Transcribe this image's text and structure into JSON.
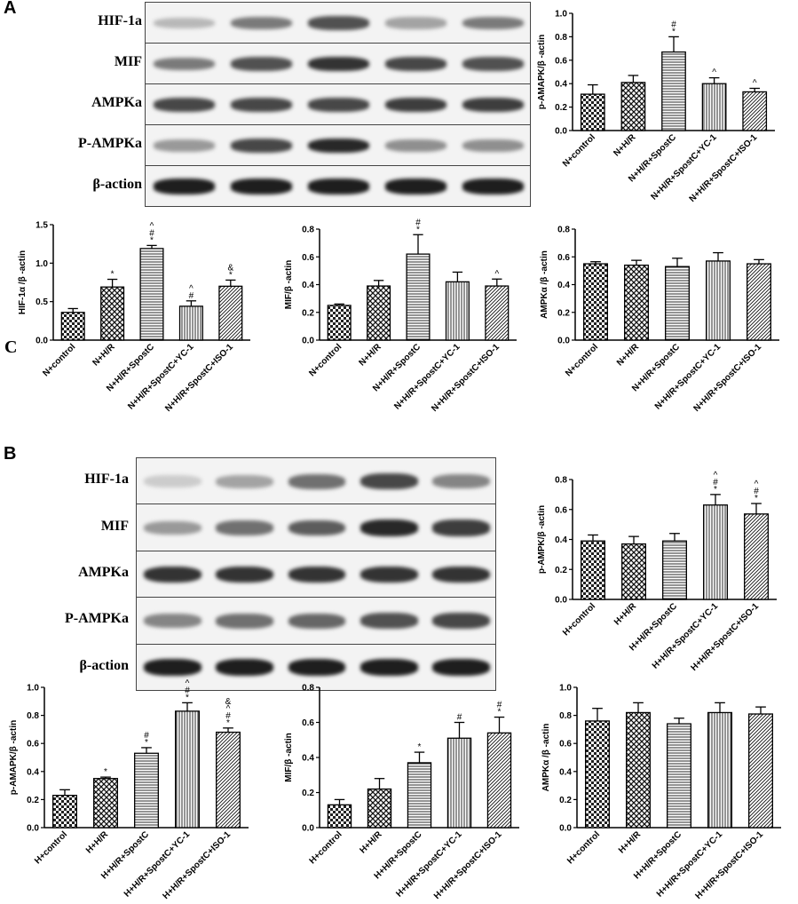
{
  "panel_labels": {
    "a": "A",
    "b": "B",
    "c": "C"
  },
  "blot_A": {
    "rows": [
      {
        "label": "HIF-1a",
        "intensity": [
          0.25,
          0.55,
          0.75,
          0.35,
          0.55
        ]
      },
      {
        "label": "MIF",
        "intensity": [
          0.55,
          0.75,
          0.9,
          0.8,
          0.75
        ]
      },
      {
        "label": "AMPKa",
        "intensity": [
          0.8,
          0.8,
          0.8,
          0.85,
          0.85
        ]
      },
      {
        "label": "P-AMPKa",
        "intensity": [
          0.4,
          0.8,
          0.95,
          0.45,
          0.45
        ]
      },
      {
        "label": "β-action",
        "intensity": [
          1,
          1,
          1,
          1,
          1
        ]
      }
    ]
  },
  "blot_B": {
    "rows": [
      {
        "label": "HIF-1a",
        "intensity": [
          0.15,
          0.35,
          0.6,
          0.8,
          0.5
        ]
      },
      {
        "label": "MIF",
        "intensity": [
          0.4,
          0.6,
          0.7,
          0.95,
          0.85
        ]
      },
      {
        "label": "AMPKa",
        "intensity": [
          0.9,
          0.9,
          0.9,
          0.9,
          0.9
        ]
      },
      {
        "label": "P-AMPKa",
        "intensity": [
          0.5,
          0.6,
          0.65,
          0.75,
          0.8
        ]
      },
      {
        "label": "β-action",
        "intensity": [
          1,
          1,
          1,
          1,
          1
        ]
      }
    ]
  },
  "chart_data": [
    {
      "id": "a-pampk",
      "type": "bar",
      "ylabel": "p-AMAPK/β -actin",
      "ylim": [
        0,
        1.0
      ],
      "yticks": [
        "0.0",
        "0.2",
        "0.4",
        "0.6",
        "0.8",
        "1.0"
      ],
      "categories": [
        "N+control",
        "N+H/R",
        "N+H/R+SpostC",
        "N+H/R+SpostC+YC-1",
        "N+H/R+SpostC+ISO-1"
      ],
      "values": [
        0.31,
        0.41,
        0.67,
        0.4,
        0.33
      ],
      "errors": [
        0.08,
        0.06,
        0.13,
        0.05,
        0.03
      ],
      "annotations": [
        [],
        [],
        [
          "#",
          "*"
        ],
        [
          "^"
        ],
        [
          "^"
        ]
      ]
    },
    {
      "id": "a-hif",
      "type": "bar",
      "ylabel": "HIF-1α /β -actin",
      "ylim": [
        0,
        1.5
      ],
      "yticks": [
        "0.0",
        "0.5",
        "1.0",
        "1.5"
      ],
      "categories": [
        "N+control",
        "N+H/R",
        "N+H/R+SpostC",
        "N+H/R+SpostC+YC-1",
        "N+H/R+SpostC+ISO-1"
      ],
      "values": [
        0.36,
        0.69,
        1.19,
        0.44,
        0.7
      ],
      "errors": [
        0.05,
        0.1,
        0.04,
        0.07,
        0.08
      ],
      "annotations": [
        [],
        [
          "*"
        ],
        [
          "^",
          "#",
          "*"
        ],
        [
          "^",
          "#"
        ],
        [
          "&",
          "*"
        ]
      ]
    },
    {
      "id": "a-mif",
      "type": "bar",
      "ylabel": "MIF/β -actin",
      "ylim": [
        0,
        0.8
      ],
      "yticks": [
        "0.0",
        "0.2",
        "0.4",
        "0.6",
        "0.8"
      ],
      "categories": [
        "N+control",
        "N+H/R",
        "N+H/R+SpostC",
        "N+H/R+SpostC+YC-1",
        "N+H/R+SpostC+ISO-1"
      ],
      "values": [
        0.25,
        0.39,
        0.62,
        0.42,
        0.39
      ],
      "errors": [
        0.01,
        0.04,
        0.14,
        0.07,
        0.05
      ],
      "annotations": [
        [],
        [],
        [
          "#",
          "*"
        ],
        [],
        [
          "^"
        ]
      ]
    },
    {
      "id": "a-ampk",
      "type": "bar",
      "ylabel": "AMPKα /β -actin",
      "ylim": [
        0,
        0.8
      ],
      "yticks": [
        "0.0",
        "0.2",
        "0.4",
        "0.6",
        "0.8"
      ],
      "categories": [
        "N+control",
        "N+H/R",
        "N+H/R+SpostC",
        "N+H/R+SpostC+YC-1",
        "N+H/R+SpostC+ISO-1"
      ],
      "values": [
        0.55,
        0.54,
        0.53,
        0.57,
        0.55
      ],
      "errors": [
        0.015,
        0.035,
        0.06,
        0.06,
        0.03
      ],
      "annotations": [
        [],
        [],
        [],
        [],
        []
      ]
    },
    {
      "id": "b-pampk-top",
      "type": "bar",
      "ylabel": "p-AMPK/β -actin",
      "ylim": [
        0,
        0.8
      ],
      "yticks": [
        "0.0",
        "0.2",
        "0.4",
        "0.6",
        "0.8"
      ],
      "categories": [
        "H+control",
        "H+H/R",
        "H+H/R+SpostC",
        "H+H/R+SpostC+YC-1",
        "H+H/R+SpostC+ISO-1"
      ],
      "values": [
        0.39,
        0.37,
        0.39,
        0.63,
        0.57
      ],
      "errors": [
        0.04,
        0.05,
        0.05,
        0.07,
        0.07
      ],
      "annotations": [
        [],
        [],
        [],
        [
          "^",
          "#",
          "*"
        ],
        [
          "^",
          "#",
          "*"
        ]
      ]
    },
    {
      "id": "b-pampk",
      "type": "bar",
      "ylabel": "p-AMAPK/β -actin",
      "ylim": [
        0,
        1.0
      ],
      "yticks": [
        "0.0",
        "0.2",
        "0.4",
        "0.6",
        "0.8",
        "1.0"
      ],
      "categories": [
        "H+control",
        "H+H/R",
        "H+H/R+SpostC",
        "H+H/R+SpostC+YC-1",
        "H+H/R+SpostC+ISO-1"
      ],
      "values": [
        0.23,
        0.35,
        0.53,
        0.83,
        0.68
      ],
      "errors": [
        0.04,
        0.01,
        0.04,
        0.06,
        0.03
      ],
      "annotations": [
        [],
        [
          "*"
        ],
        [
          "#",
          "*"
        ],
        [
          "^",
          "#",
          "*"
        ],
        [
          "&",
          "^",
          "#",
          "*"
        ]
      ]
    },
    {
      "id": "b-mif",
      "type": "bar",
      "ylabel": "MIF/β -actin",
      "ylim": [
        0,
        0.8
      ],
      "yticks": [
        "0.0",
        "0.2",
        "0.4",
        "0.6",
        "0.8"
      ],
      "categories": [
        "H+control",
        "H+H/R",
        "H+H/R+SpostC",
        "H+H/R+SpostC+YC-1",
        "H+H/R+SpostC+ISO-1"
      ],
      "values": [
        0.13,
        0.22,
        0.37,
        0.51,
        0.54
      ],
      "errors": [
        0.03,
        0.06,
        0.06,
        0.09,
        0.09
      ],
      "annotations": [
        [],
        [],
        [
          "*"
        ],
        [
          "#"
        ],
        [
          "#",
          "*"
        ]
      ]
    },
    {
      "id": "b-ampk",
      "type": "bar",
      "ylabel": "AMPKα /β -actin",
      "ylim": [
        0,
        1.0
      ],
      "yticks": [
        "0.0",
        "0.2",
        "0.4",
        "0.6",
        "0.8",
        "1.0"
      ],
      "categories": [
        "H+control",
        "H+H/R",
        "H+H/R+SpostC",
        "H+H/R+SpostC+YC-1",
        "H+H/R+SpostC+ISO-1"
      ],
      "values": [
        0.76,
        0.82,
        0.74,
        0.82,
        0.81
      ],
      "errors": [
        0.09,
        0.07,
        0.04,
        0.07,
        0.05
      ],
      "annotations": [
        [],
        [],
        [],
        [],
        []
      ]
    }
  ]
}
